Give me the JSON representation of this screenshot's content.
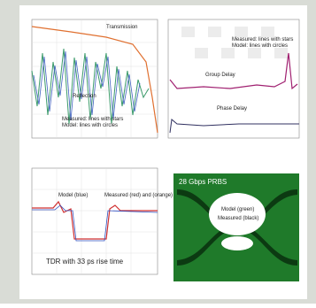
{
  "panels": [
    {
      "annotations": [
        "Transmission",
        "Reflection",
        "Measured: lines with stars",
        "Model: lines with circles"
      ]
    },
    {
      "annotations": [
        "Group Delay",
        "Phase Delay",
        "Measured: lines with stars",
        "Model: lines with circles"
      ]
    },
    {
      "annotations": [
        "Model (blue)",
        "Measured (red) and (orange)",
        "TDR with 33 ps rise time"
      ]
    },
    {
      "annotations": [
        "28 Gbps PRBS",
        "Model (green)",
        "Measured (black)"
      ]
    }
  ]
}
